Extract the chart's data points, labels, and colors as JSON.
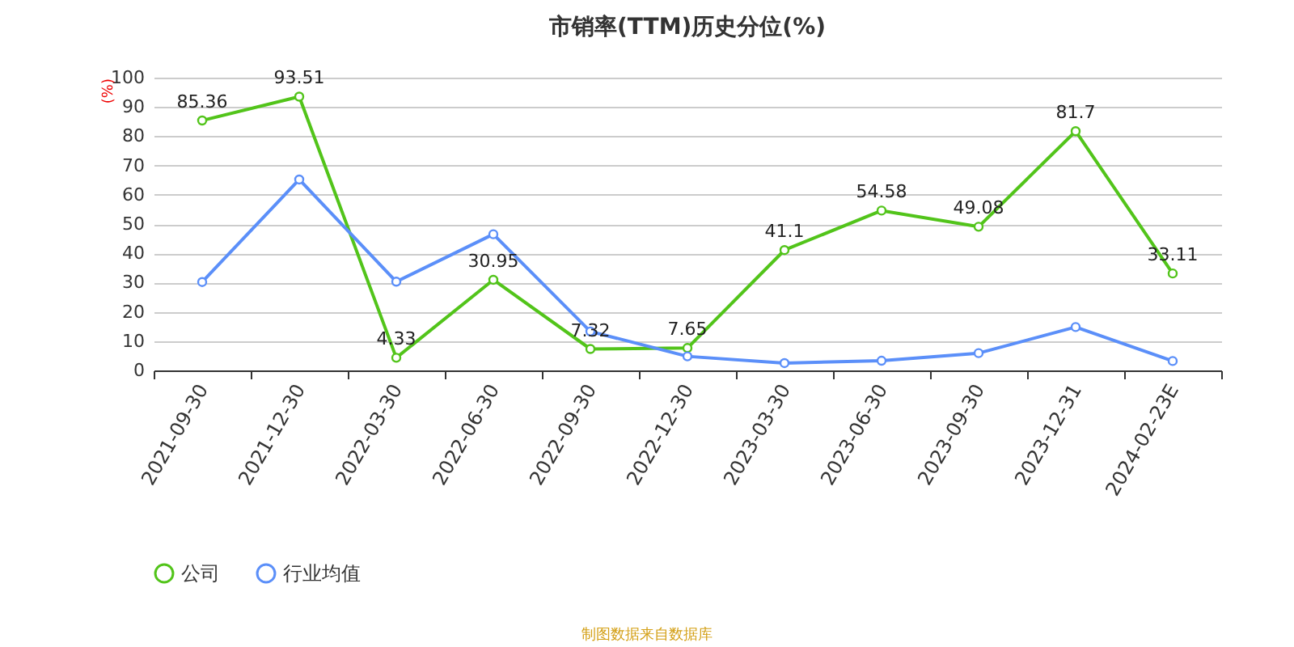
{
  "chart_data": {
    "type": "line",
    "title": "市销率(TTM)历史分位(%)",
    "ylabel": "(%)",
    "categories": [
      "2021-09-30",
      "2021-12-30",
      "2022-03-30",
      "2022-06-30",
      "2022-09-30",
      "2022-12-30",
      "2023-03-30",
      "2023-06-30",
      "2023-09-30",
      "2023-12-31",
      "2024-02-23E"
    ],
    "series": [
      {
        "name": "公司",
        "color": "#52c41a",
        "values": [
          85.36,
          93.51,
          4.33,
          30.95,
          7.32,
          7.65,
          41.1,
          54.58,
          49.08,
          81.7,
          33.11
        ],
        "value_labels": [
          "85.36",
          "93.51",
          "4.33",
          "30.95",
          "7.32",
          "7.65",
          "41.1",
          "54.58",
          "49.08",
          "81.7",
          "33.11"
        ]
      },
      {
        "name": "行业均值",
        "color": "#5b8ff9",
        "values": [
          30.2,
          65.2,
          30.3,
          46.5,
          13.3,
          4.8,
          2.5,
          3.3,
          5.9,
          14.8,
          3.2
        ]
      }
    ],
    "ylim": [
      0,
      100
    ],
    "yticks": [
      0,
      10,
      20,
      30,
      40,
      50,
      60,
      70,
      80,
      90,
      100
    ],
    "grid": "y",
    "legend": "bottom",
    "marker": "circle",
    "line_style": "solid",
    "annotations": [
      "制图数据来自数据库"
    ]
  }
}
